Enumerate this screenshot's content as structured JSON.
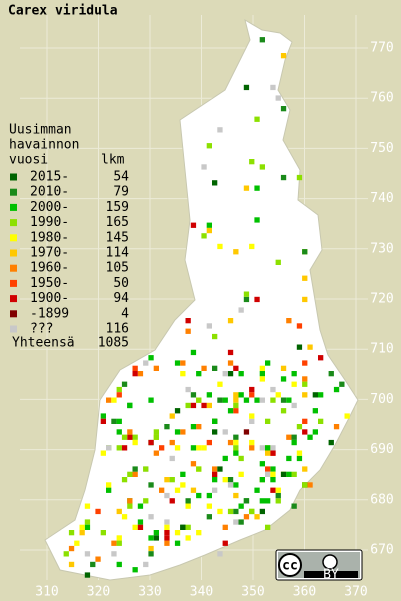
{
  "title": "Carex viridula",
  "legend": {
    "header": [
      "Uusimman",
      "havainnon",
      "vuosi"
    ],
    "count_header": "lkm",
    "items": [
      {
        "label": "2015-",
        "count": 54,
        "color": "#006400"
      },
      {
        "label": "2010-",
        "count": 79,
        "color": "#1a8a1a"
      },
      {
        "label": "2000-",
        "count": 159,
        "color": "#00c000"
      },
      {
        "label": "1990-",
        "count": 165,
        "color": "#8ce000"
      },
      {
        "label": "1980-",
        "count": 145,
        "color": "#ffff00"
      },
      {
        "label": "1970-",
        "count": 114,
        "color": "#ffc800"
      },
      {
        "label": "1960-",
        "count": 105,
        "color": "#ff8000"
      },
      {
        "label": "1950-",
        "count": 50,
        "color": "#ff4000"
      },
      {
        "label": "1900-",
        "count": 94,
        "color": "#d00000"
      },
      {
        "label": "-1899",
        "count": 4,
        "color": "#800000"
      },
      {
        "label": "???",
        "count": 116,
        "color": "#c8c8c8"
      }
    ],
    "total_label": "Yhteensä",
    "total": 1085
  },
  "xticks": [
    310,
    320,
    330,
    340,
    350,
    360,
    370
  ],
  "yticks": [
    670,
    680,
    690,
    700,
    710,
    720,
    730,
    740,
    750,
    760,
    770
  ],
  "badge": {
    "icon": "cc",
    "license": "BY"
  }
}
